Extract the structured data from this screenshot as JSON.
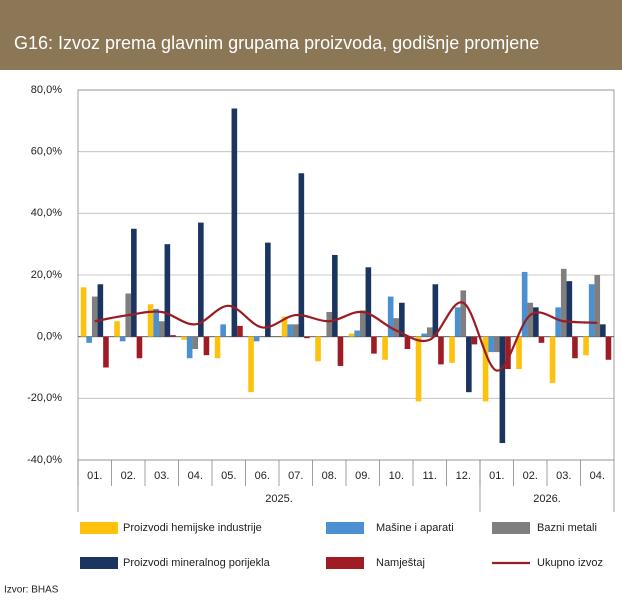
{
  "chart_data": {
    "type": "bar",
    "title": "G16: Izvoz prema glavnim grupama proizvoda, godišnje promjene",
    "source": "Izvor: BHAS",
    "categories": [
      "01.",
      "02.",
      "03.",
      "04.",
      "05.",
      "06.",
      "07.",
      "08.",
      "09.",
      "10.",
      "11.",
      "12.",
      "01.",
      "02.",
      "03.",
      "04."
    ],
    "category_groups": [
      {
        "label": "2025.",
        "count": 12
      },
      {
        "label": "2026.",
        "count": 4
      }
    ],
    "ylim": [
      -40,
      80
    ],
    "yticks": [
      {
        "value": -40,
        "label": "-40,0%"
      },
      {
        "value": -20,
        "label": "-20,0%"
      },
      {
        "value": 0,
        "label": "0,0%"
      },
      {
        "value": 20,
        "label": "20,0%"
      },
      {
        "value": 40,
        "label": "40,0%"
      },
      {
        "value": 60,
        "label": "60,0%"
      },
      {
        "value": 80,
        "label": "80,0%"
      }
    ],
    "grid": true,
    "series": [
      {
        "name": "Proizvodi hemijske industrije",
        "color": "#fcc20e",
        "type": "bar",
        "values": [
          16,
          5,
          10.5,
          -1,
          -7,
          -18,
          6.5,
          -8,
          1,
          -7.5,
          -21,
          -8.5,
          -21,
          -10.5,
          -15,
          -6
        ]
      },
      {
        "name": "Mašine i aparati",
        "color": "#4a90d2",
        "type": "bar",
        "values": [
          -2,
          -1.5,
          9,
          -7,
          4,
          -1.5,
          4,
          0,
          2,
          13,
          1,
          9.5,
          -5,
          21,
          9.5,
          17
        ]
      },
      {
        "name": "Bazni metali",
        "color": "#7f7f7f",
        "type": "bar",
        "values": [
          13,
          14,
          5,
          -4,
          0,
          0,
          4,
          8,
          8.5,
          6,
          3,
          15,
          -5,
          11,
          22,
          20
        ]
      },
      {
        "name": "Proizvodi mineralnog porijekla",
        "color": "#1b3560",
        "type": "bar",
        "values": [
          17,
          35,
          30,
          37,
          74,
          30.5,
          53,
          26.5,
          22.5,
          11,
          17,
          -18,
          -34.5,
          9.5,
          18,
          4
        ]
      },
      {
        "name": "Namještaj",
        "color": "#a01c25",
        "type": "bar",
        "values": [
          -10,
          -7,
          0.5,
          -6,
          3.5,
          0,
          -0.5,
          -9.5,
          -5.5,
          -4,
          -9,
          -2.5,
          -10.5,
          -2,
          -7,
          -7.5
        ]
      },
      {
        "name": "Ukupno izvoz",
        "color": "#9b1c22",
        "type": "line",
        "values": [
          5,
          7,
          8,
          4,
          10,
          3,
          7,
          5,
          8,
          2,
          -1,
          11,
          -11,
          7,
          5,
          4.5
        ]
      }
    ]
  }
}
